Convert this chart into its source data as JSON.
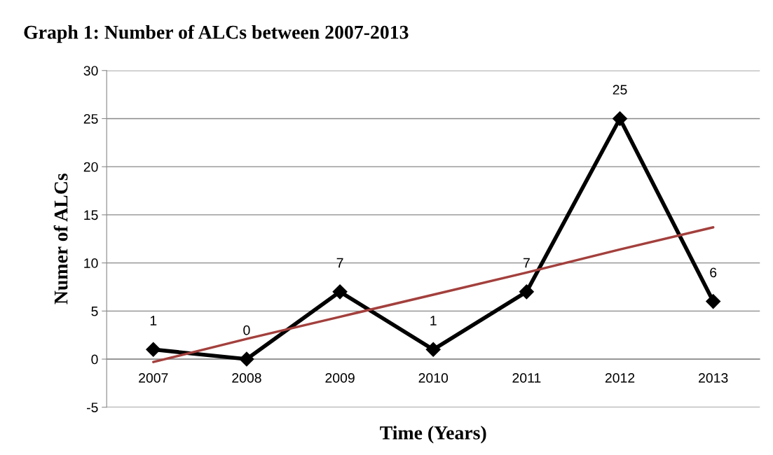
{
  "chart_data": {
    "type": "line",
    "title": "Graph 1: Number of ALCs between 2007-2013",
    "xlabel": "Time (Years)",
    "ylabel": "Numer of ALCs",
    "categories": [
      "2007",
      "2008",
      "2009",
      "2010",
      "2011",
      "2012",
      "2013"
    ],
    "series": [
      {
        "color": "#000000",
        "values": [
          1,
          0,
          7,
          1,
          7,
          25,
          6
        ],
        "marker": "diamond",
        "data_labels": true
      },
      {
        "type": "line",
        "color": "#a3403d",
        "values": [
          -0.3,
          2.1,
          4.4,
          6.7,
          9.0,
          11.4,
          13.7
        ],
        "marker": "none"
      }
    ],
    "ylim": [
      -5,
      30
    ],
    "yticks": [
      -5,
      0,
      5,
      10,
      15,
      20,
      25,
      30
    ],
    "grid": "y",
    "legend": false,
    "line_style": "solid"
  }
}
